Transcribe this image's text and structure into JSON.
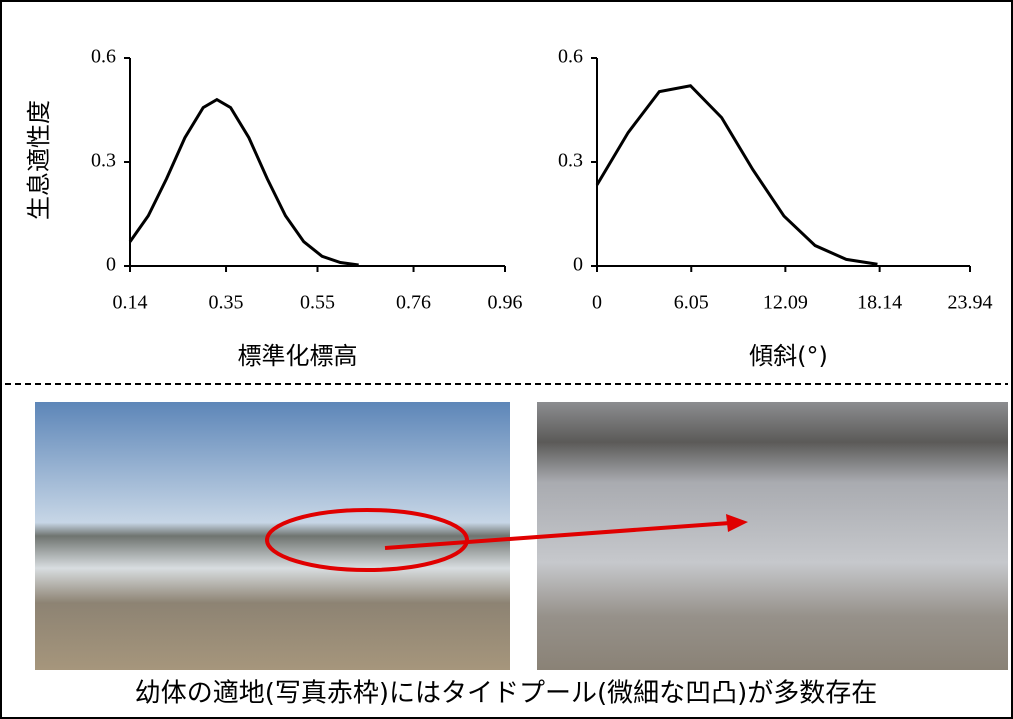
{
  "chart_data": [
    {
      "type": "line",
      "y_label": "生息適性度",
      "x_label": "標準化標高",
      "color": "#000000",
      "x": [
        0.14,
        0.18,
        0.22,
        0.26,
        0.3,
        0.33,
        0.36,
        0.4,
        0.44,
        0.48,
        0.52,
        0.56,
        0.6,
        0.64
      ],
      "values": [
        0.07,
        0.145,
        0.252,
        0.37,
        0.457,
        0.48,
        0.457,
        0.37,
        0.252,
        0.145,
        0.07,
        0.028,
        0.01,
        0.003
      ],
      "xlim": [
        0.14,
        0.96
      ],
      "ylim": [
        0,
        0.6
      ],
      "xticks": [
        0.14,
        0.35,
        0.55,
        0.76,
        0.96
      ],
      "yticks": [
        0,
        0.3,
        0.6
      ]
    },
    {
      "type": "line",
      "x_label": "傾斜(°)",
      "color": "#000000",
      "x": [
        0,
        2,
        4,
        6,
        8,
        10,
        12,
        14,
        16,
        18
      ],
      "values": [
        0.234,
        0.385,
        0.503,
        0.52,
        0.428,
        0.278,
        0.144,
        0.059,
        0.019,
        0.005
      ],
      "xlim": [
        0,
        23.94
      ],
      "ylim": [
        0,
        0.6
      ],
      "xticks": [
        0,
        6.05,
        12.09,
        18.14,
        23.94
      ],
      "yticks": [
        0,
        0.3,
        0.6
      ]
    }
  ],
  "photo_caption": "幼体の適地(写真赤枠)にはタイドプール(微細な凹凸)が多数存在"
}
